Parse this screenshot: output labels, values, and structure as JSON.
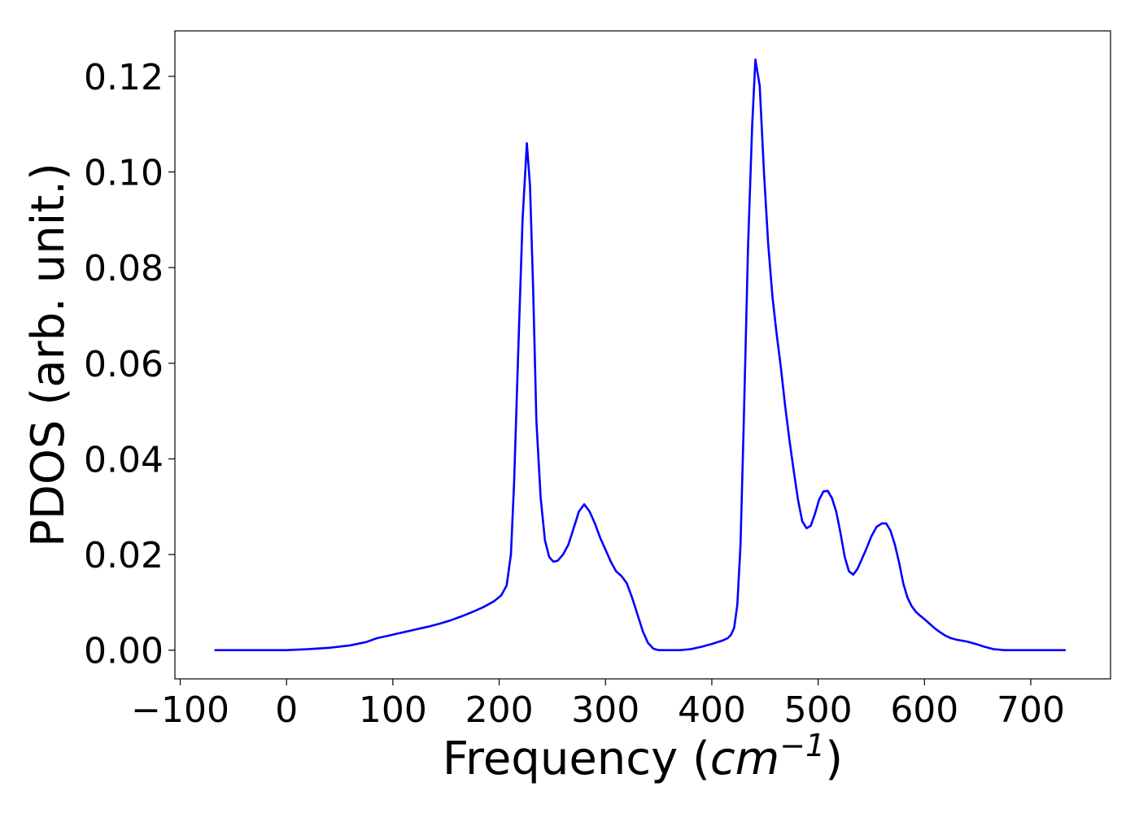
{
  "chart_data": {
    "type": "line",
    "xlabel": "Frequency (cm^-1)",
    "xlabel_parts": {
      "prefix": "Frequency (",
      "var": "cm",
      "exp": "−1",
      "suffix": ")"
    },
    "ylabel": "PDOS (arb. unit.)",
    "xlim": [
      -105,
      775
    ],
    "ylim": [
      -0.006,
      0.1295
    ],
    "xticks": [
      -100,
      0,
      100,
      200,
      300,
      400,
      500,
      600,
      700
    ],
    "xtick_labels": [
      "−100",
      "0",
      "100",
      "200",
      "300",
      "400",
      "500",
      "600",
      "700"
    ],
    "yticks": [
      0.0,
      0.02,
      0.04,
      0.06,
      0.08,
      0.1,
      0.12
    ],
    "ytick_labels": [
      "0.00",
      "0.02",
      "0.04",
      "0.06",
      "0.08",
      "0.10",
      "0.12"
    ],
    "grid": false,
    "series": [
      {
        "color": "#0000ff",
        "x": [
          -67,
          -40,
          -20,
          0,
          10,
          20,
          40,
          60,
          75,
          85,
          95,
          105,
          115,
          125,
          135,
          145,
          155,
          165,
          175,
          185,
          195,
          202,
          207,
          211,
          214,
          218,
          222,
          226,
          229,
          232,
          235,
          239,
          243,
          247,
          251,
          255,
          260,
          265,
          270,
          275,
          280,
          285,
          290,
          295,
          300,
          305,
          310,
          315,
          320,
          325,
          330,
          335,
          340,
          345,
          350,
          355,
          360,
          370,
          380,
          390,
          400,
          410,
          415,
          418,
          421,
          424,
          427,
          430,
          434,
          438,
          441,
          445,
          449,
          453,
          457,
          461,
          465,
          469,
          473,
          477,
          481,
          485,
          489,
          493,
          497,
          501,
          505,
          509,
          513,
          517,
          521,
          525,
          529,
          533,
          537,
          541,
          545,
          550,
          555,
          560,
          564,
          568,
          572,
          576,
          580,
          584,
          588,
          592,
          596,
          600,
          605,
          610,
          615,
          620,
          625,
          630,
          640,
          650,
          655,
          660,
          665,
          670,
          675,
          685,
          700,
          715,
          732
        ],
        "y": [
          0,
          0,
          0,
          0,
          0.0001,
          0.0002,
          0.0005,
          0.001,
          0.0017,
          0.0025,
          0.003,
          0.0035,
          0.004,
          0.0045,
          0.005,
          0.0056,
          0.0063,
          0.0071,
          0.008,
          0.009,
          0.0102,
          0.0115,
          0.0135,
          0.02,
          0.035,
          0.063,
          0.09,
          0.106,
          0.097,
          0.075,
          0.048,
          0.032,
          0.023,
          0.0195,
          0.0185,
          0.0187,
          0.02,
          0.022,
          0.0255,
          0.029,
          0.0305,
          0.029,
          0.0265,
          0.0235,
          0.021,
          0.0185,
          0.0165,
          0.0155,
          0.014,
          0.011,
          0.0075,
          0.004,
          0.0015,
          0.0003,
          0,
          0,
          0,
          0,
          0.0002,
          0.0007,
          0.0013,
          0.002,
          0.0025,
          0.0032,
          0.0047,
          0.0095,
          0.022,
          0.047,
          0.084,
          0.11,
          0.1235,
          0.118,
          0.1,
          0.085,
          0.074,
          0.066,
          0.059,
          0.051,
          0.044,
          0.0375,
          0.0315,
          0.027,
          0.0255,
          0.026,
          0.0285,
          0.0315,
          0.0332,
          0.0333,
          0.0318,
          0.029,
          0.0245,
          0.0195,
          0.0165,
          0.0158,
          0.017,
          0.019,
          0.021,
          0.0238,
          0.0258,
          0.0265,
          0.0265,
          0.025,
          0.0222,
          0.0185,
          0.014,
          0.011,
          0.0092,
          0.008,
          0.0072,
          0.0065,
          0.0055,
          0.0045,
          0.0037,
          0.003,
          0.0025,
          0.0022,
          0.0018,
          0.0012,
          0.0008,
          0.0005,
          0.0002,
          0.0001,
          0,
          0,
          0,
          0,
          0
        ]
      }
    ]
  }
}
